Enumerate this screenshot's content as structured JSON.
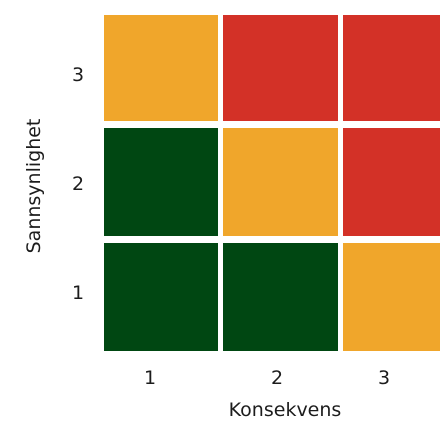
{
  "chart_data": {
    "type": "heatmap",
    "title": "",
    "xlabel": "Konsekvens",
    "ylabel": "Sannsynlighet",
    "x_categories": [
      "1",
      "2",
      "3"
    ],
    "y_categories": [
      "1",
      "2",
      "3"
    ],
    "grid": false,
    "legend": "none",
    "colors": {
      "green": "#004712",
      "orange": "#f0a62b",
      "red": "#d33127"
    },
    "cells": [
      {
        "x": "1",
        "y": "1",
        "color": "green"
      },
      {
        "x": "2",
        "y": "1",
        "color": "green"
      },
      {
        "x": "3",
        "y": "1",
        "color": "orange"
      },
      {
        "x": "1",
        "y": "2",
        "color": "green"
      },
      {
        "x": "2",
        "y": "2",
        "color": "orange"
      },
      {
        "x": "3",
        "y": "2",
        "color": "red"
      },
      {
        "x": "1",
        "y": "3",
        "color": "orange"
      },
      {
        "x": "2",
        "y": "3",
        "color": "red"
      },
      {
        "x": "3",
        "y": "3",
        "color": "red"
      }
    ]
  }
}
